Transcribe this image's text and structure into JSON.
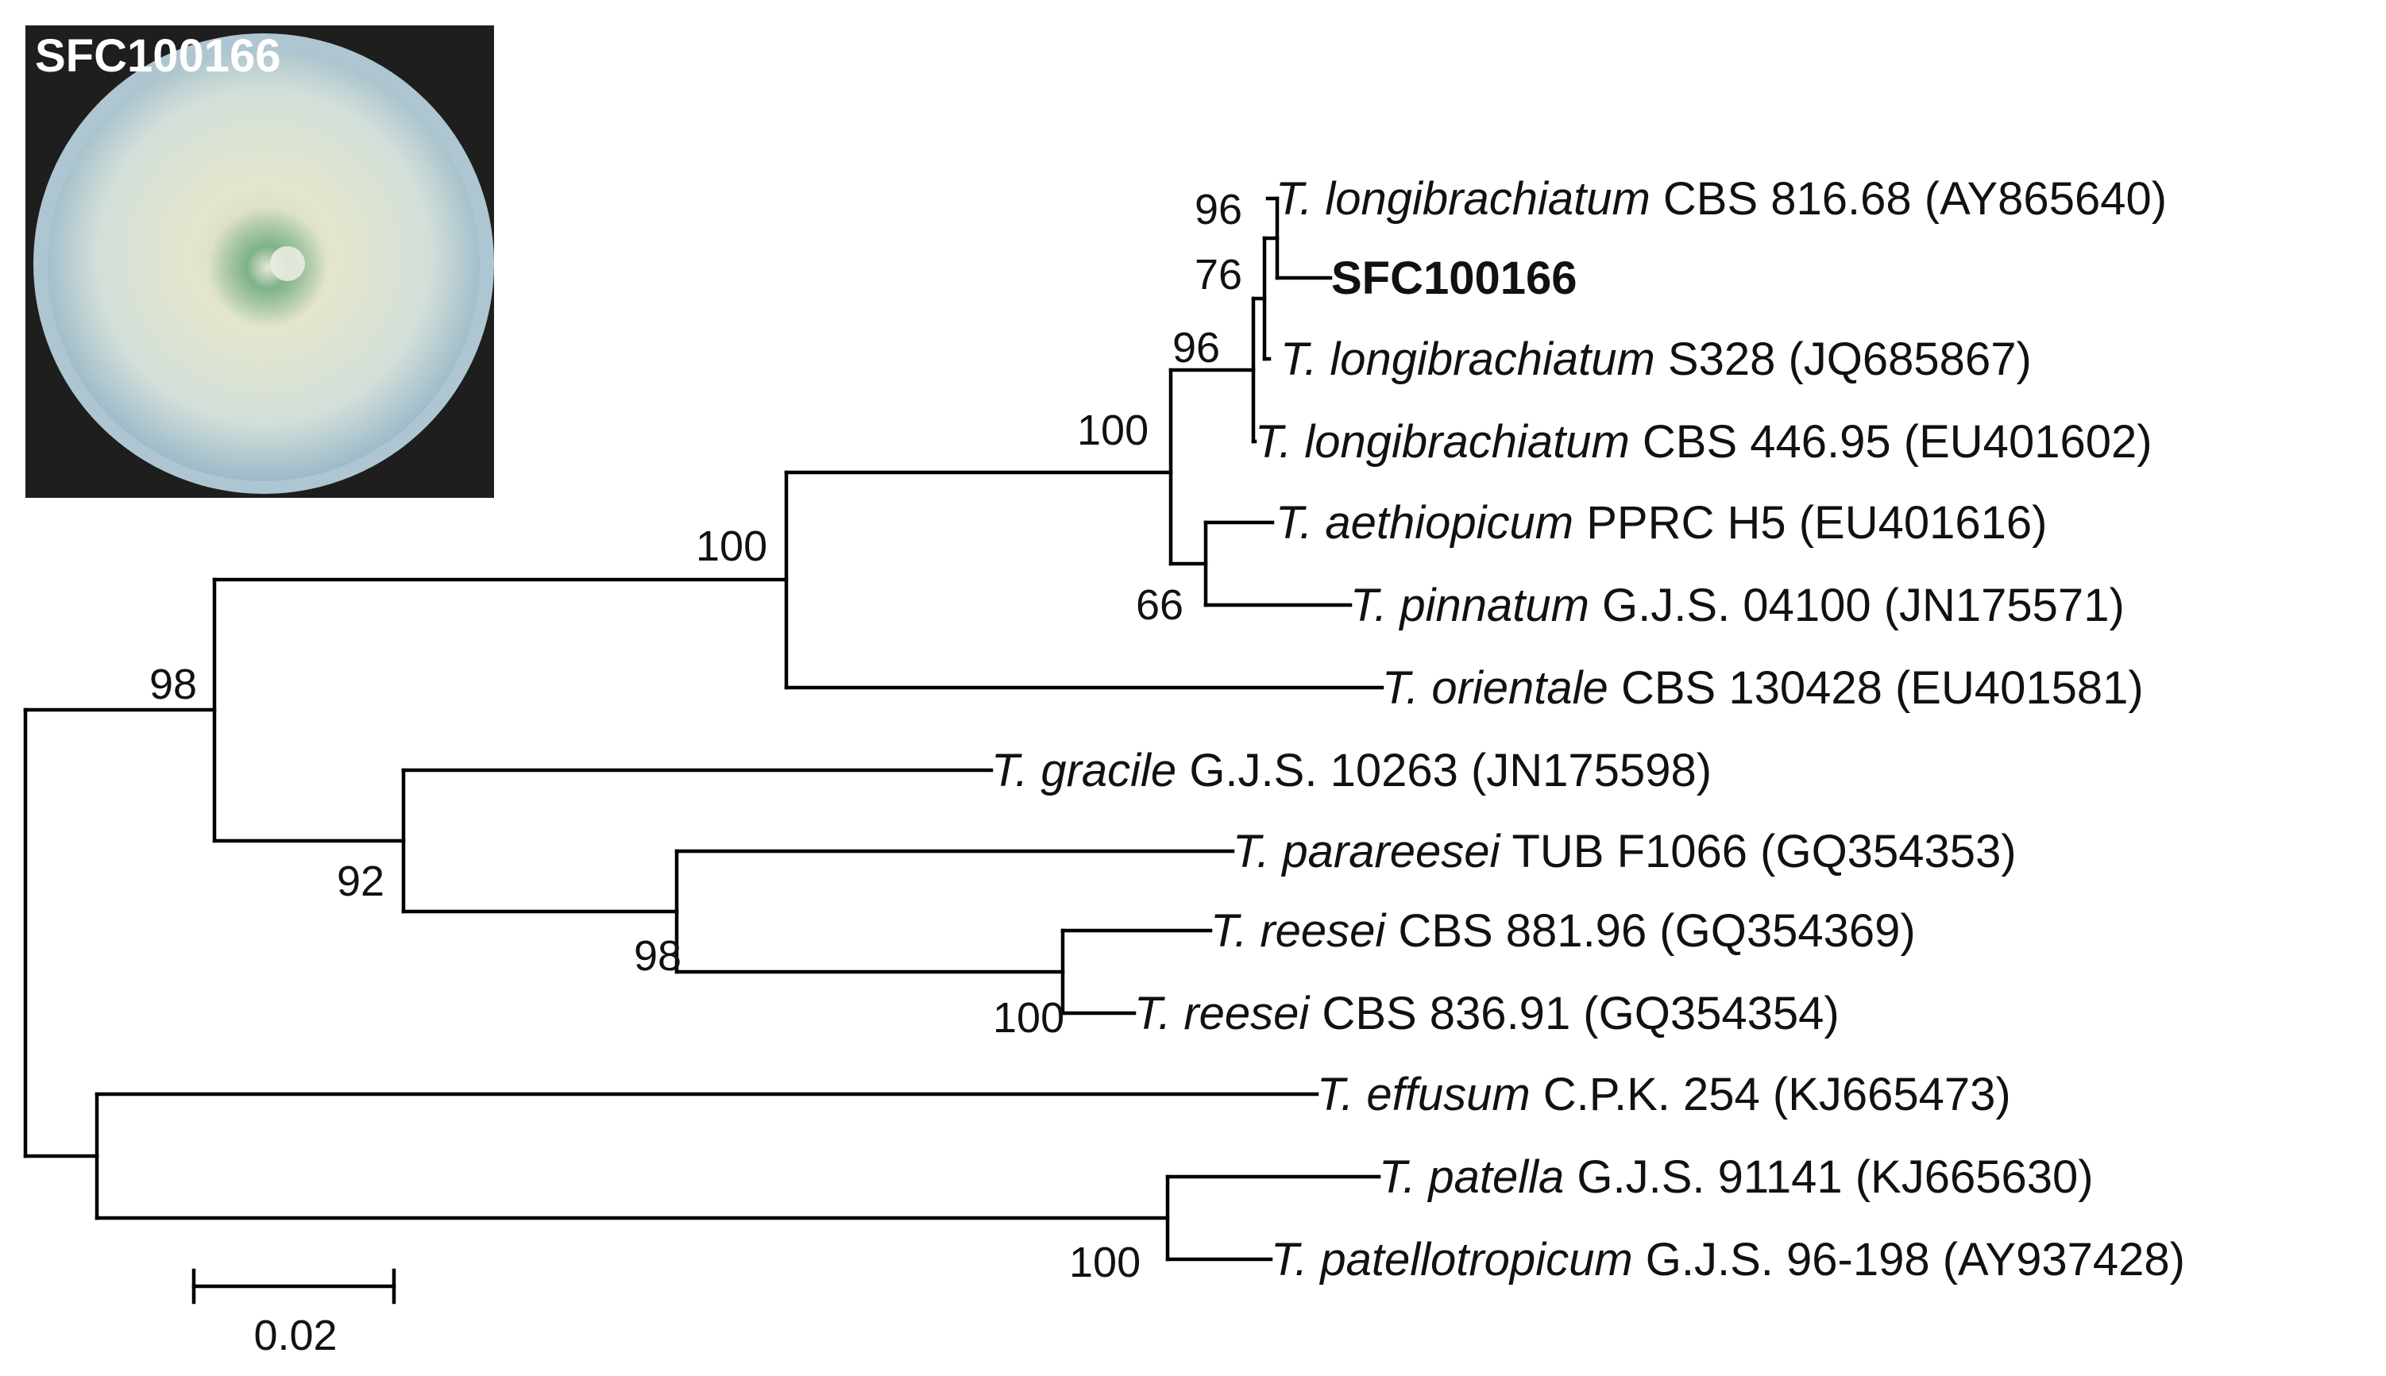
{
  "photo": {
    "label": "SFC100166",
    "colors": {
      "frame": "#1e1e1e",
      "agar": "#d6e0d2",
      "agar_edge": "#8fb2c6",
      "center": "#5a9a6a"
    }
  },
  "tree": {
    "taxa": [
      {
        "id": "t1",
        "species": "T. longibrachiatum",
        "strain": " CBS 816.68 (AY865640)"
      },
      {
        "id": "t2",
        "species": "",
        "strain": "SFC100166",
        "bold": true
      },
      {
        "id": "t3",
        "species": "T. longibrachiatum",
        "strain": " S328 (JQ685867)"
      },
      {
        "id": "t4",
        "species": "T. longibrachiatum",
        "strain": " CBS 446.95 (EU401602)"
      },
      {
        "id": "t5",
        "species": "T. aethiopicum",
        "strain": " PPRC H5 (EU401616)"
      },
      {
        "id": "t6",
        "species": "T. pinnatum",
        "strain": " G.J.S. 04100 (JN175571)"
      },
      {
        "id": "t7",
        "species": "T. orientale",
        "strain": " CBS 130428 (EU401581)"
      },
      {
        "id": "t8",
        "species": "T. gracile",
        "strain": " G.J.S. 10263 (JN175598)"
      },
      {
        "id": "t9",
        "species": "T. parareesei",
        "strain": " TUB F1066 (GQ354353)"
      },
      {
        "id": "t10",
        "species": "T. reesei",
        "strain": " CBS 881.96 (GQ354369)"
      },
      {
        "id": "t11",
        "species": "T. reesei",
        "strain": " CBS 836.91 (GQ354354)"
      },
      {
        "id": "t12",
        "species": "T. effusum",
        "strain": " C.P.K. 254 (KJ665473)"
      },
      {
        "id": "t13",
        "species": "T. patella",
        "strain": " G.J.S. 91141 (KJ665630)"
      },
      {
        "id": "t14",
        "species": "T. patellotropicum",
        "strain": " G.J.S. 96-198 (AY937428)"
      }
    ],
    "bootstrap": [
      "96",
      "76",
      "96",
      "100",
      "66",
      "100",
      "98",
      "92",
      "98",
      "100",
      "100"
    ],
    "scale_bar": {
      "label": "0.02",
      "length": 0.02
    }
  }
}
